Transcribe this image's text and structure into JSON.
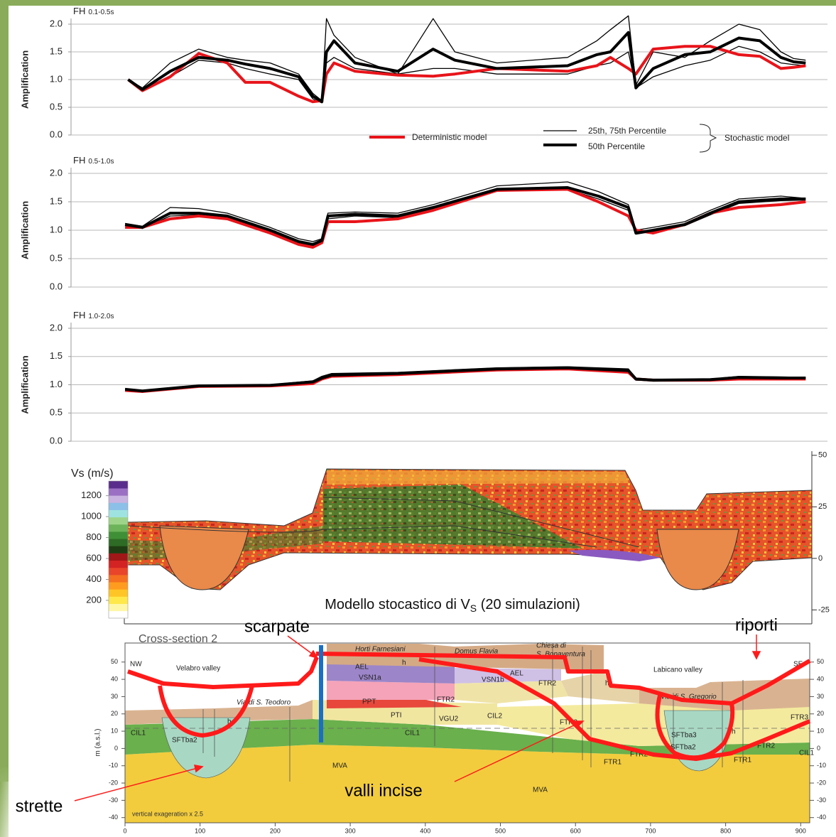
{
  "chart_data": [
    {
      "type": "line",
      "title": "FH",
      "title_subscript": "0.1-0.5s",
      "y_label": "Amplification",
      "xlim": [
        -72,
        935
      ],
      "ylim": [
        0,
        2
      ],
      "yticks": [
        {
          "value": 0,
          "label": "0.0"
        },
        0.5,
        {
          "value": 1,
          "label": "1.0"
        },
        1.5,
        {
          "value": 2,
          "label": "2.0"
        }
      ],
      "grid": true,
      "x": [
        4,
        23,
        60,
        98,
        136,
        160,
        193,
        231,
        250,
        262,
        268,
        278,
        306,
        363,
        410,
        439,
        495,
        589,
        628,
        646,
        670,
        680,
        703,
        745,
        779,
        817,
        845,
        873,
        890,
        906
      ],
      "series": [
        {
          "name": "Deterministic model",
          "color": "#e8141a",
          "values": [
            1.0,
            0.8,
            1.05,
            1.47,
            1.3,
            0.95,
            0.95,
            0.7,
            0.6,
            0.62,
            1.1,
            1.3,
            1.15,
            1.08,
            1.06,
            1.1,
            1.2,
            1.15,
            1.25,
            1.4,
            1.2,
            1.1,
            1.55,
            1.6,
            1.6,
            1.45,
            1.42,
            1.2,
            1.22,
            1.25
          ]
        },
        {
          "name": "50th Percentile",
          "color": "#000000",
          "values": [
            1.0,
            0.82,
            1.15,
            1.4,
            1.35,
            1.28,
            1.2,
            1.05,
            0.7,
            0.6,
            1.5,
            1.7,
            1.3,
            1.15,
            1.55,
            1.35,
            1.2,
            1.25,
            1.45,
            1.5,
            1.85,
            0.85,
            1.2,
            1.45,
            1.5,
            1.75,
            1.7,
            1.4,
            1.32,
            1.3
          ]
        }
      ],
      "percentile_band": {
        "name": "25th, 75th Percentile",
        "color": "#000000",
        "lower": [
          1.0,
          0.8,
          1.05,
          1.35,
          1.3,
          1.2,
          1.1,
          1.0,
          0.65,
          0.58,
          1.3,
          1.4,
          1.2,
          1.1,
          1.2,
          1.2,
          1.1,
          1.1,
          1.25,
          1.3,
          1.5,
          0.85,
          1.05,
          1.25,
          1.35,
          1.6,
          1.5,
          1.3,
          1.27,
          1.25
        ],
        "upper": [
          1.0,
          0.85,
          1.3,
          1.55,
          1.4,
          1.35,
          1.3,
          1.1,
          0.75,
          0.62,
          2.1,
          1.8,
          1.4,
          1.1,
          2.1,
          1.5,
          1.3,
          1.4,
          1.7,
          1.9,
          2.15,
          0.9,
          1.5,
          1.4,
          1.7,
          2.0,
          1.9,
          1.5,
          1.38,
          1.35
        ]
      },
      "legend_group": "Stochastic model"
    },
    {
      "type": "line",
      "title": "FH",
      "title_subscript": "0.5-1.0s",
      "y_label": "Amplification",
      "xlim": [
        -72,
        935
      ],
      "ylim": [
        0,
        2
      ],
      "yticks": [
        {
          "value": 0,
          "label": "0.0"
        },
        0.5,
        {
          "value": 1,
          "label": "1.0"
        },
        1.5,
        {
          "value": 2,
          "label": "2.0"
        }
      ],
      "grid": true,
      "x": [
        0,
        23,
        60,
        98,
        136,
        193,
        231,
        250,
        262,
        270,
        306,
        363,
        410,
        495,
        589,
        630,
        670,
        680,
        703,
        745,
        779,
        817,
        873,
        906
      ],
      "series": [
        {
          "color": "#e8141a",
          "values": [
            1.05,
            1.05,
            1.2,
            1.25,
            1.2,
            0.95,
            0.75,
            0.7,
            0.78,
            1.15,
            1.15,
            1.2,
            1.35,
            1.7,
            1.72,
            1.5,
            1.25,
            1.0,
            0.95,
            1.1,
            1.3,
            1.4,
            1.45,
            1.5
          ]
        },
        {
          "color": "#000000",
          "values": [
            1.1,
            1.05,
            1.3,
            1.3,
            1.25,
            1.0,
            0.8,
            0.75,
            0.82,
            1.25,
            1.28,
            1.25,
            1.4,
            1.72,
            1.75,
            1.6,
            1.4,
            0.95,
            1.0,
            1.1,
            1.3,
            1.5,
            1.55,
            1.55
          ]
        }
      ],
      "percentile_band": {
        "color": "#000000",
        "lower": [
          1.08,
          1.03,
          1.25,
          1.27,
          1.22,
          0.97,
          0.78,
          0.73,
          0.8,
          1.2,
          1.25,
          1.22,
          1.38,
          1.7,
          1.72,
          1.55,
          1.35,
          0.93,
          0.98,
          1.08,
          1.27,
          1.47,
          1.52,
          1.53
        ],
        "upper": [
          1.12,
          1.07,
          1.4,
          1.38,
          1.3,
          1.05,
          0.85,
          0.8,
          0.85,
          1.3,
          1.32,
          1.3,
          1.45,
          1.78,
          1.85,
          1.68,
          1.45,
          1.0,
          1.05,
          1.15,
          1.35,
          1.55,
          1.6,
          1.56
        ]
      }
    },
    {
      "type": "line",
      "title": "FH",
      "title_subscript": "1.0-2.0s",
      "y_label": "Amplification",
      "xlim": [
        -72,
        935
      ],
      "ylim": [
        0,
        2
      ],
      "yticks": [
        {
          "value": 0,
          "label": "0.0"
        },
        0.5,
        {
          "value": 1,
          "label": "1.0"
        },
        1.5,
        {
          "value": 2,
          "label": "2.0"
        }
      ],
      "grid": true,
      "x": [
        0,
        23,
        98,
        193,
        250,
        262,
        275,
        363,
        495,
        589,
        670,
        680,
        703,
        779,
        817,
        873,
        906
      ],
      "series": [
        {
          "color": "#e8141a",
          "values": [
            0.9,
            0.88,
            0.97,
            0.98,
            1.02,
            1.1,
            1.15,
            1.18,
            1.26,
            1.28,
            1.22,
            1.1,
            1.08,
            1.08,
            1.1,
            1.1,
            1.1
          ]
        },
        {
          "color": "#000000",
          "values": [
            0.92,
            0.89,
            0.98,
            0.99,
            1.05,
            1.12,
            1.17,
            1.2,
            1.28,
            1.3,
            1.25,
            1.1,
            1.08,
            1.09,
            1.13,
            1.12,
            1.12
          ]
        }
      ],
      "percentile_band": {
        "color": "#000000",
        "lower": [
          0.91,
          0.88,
          0.97,
          0.98,
          1.03,
          1.1,
          1.15,
          1.18,
          1.26,
          1.28,
          1.22,
          1.08,
          1.07,
          1.08,
          1.1,
          1.1,
          1.1
        ],
        "upper": [
          0.93,
          0.9,
          0.99,
          1.0,
          1.07,
          1.15,
          1.2,
          1.22,
          1.3,
          1.32,
          1.28,
          1.12,
          1.1,
          1.1,
          1.15,
          1.14,
          1.13
        ]
      }
    }
  ],
  "vs_model": {
    "colorbar_label": "Vs (m/s)",
    "colorbar_ticks": [
      200,
      400,
      600,
      800,
      1000,
      1200
    ],
    "colorbar_lim": [
      30,
      1340
    ],
    "colors": [
      "#ffffff",
      "#fff7a8",
      "#ffe84a",
      "#ffc526",
      "#ff9c1f",
      "#f57020",
      "#e8452a",
      "#d42323",
      "#a01818",
      "#1f3d12",
      "#2e6b25",
      "#3f8f36",
      "#6db35a",
      "#9ed48a",
      "#9fe3e0",
      "#8cc0e8",
      "#c9b3e0",
      "#9b6fc4",
      "#5a2d8c"
    ],
    "ylim": [
      -29,
      52
    ],
    "yticks": [
      50,
      25,
      0,
      -25
    ],
    "caption": "Modello stocastico di V",
    "caption_subscript": "S",
    "caption_tail": " (20 simulazioni)"
  },
  "cross_section": {
    "title": "Cross-section 2",
    "y_label": "m (a.s.l.)",
    "xlim": [
      0,
      912
    ],
    "ylim": [
      -43,
      61
    ],
    "xticks": [
      0,
      100,
      200,
      300,
      400,
      500,
      600,
      700,
      800,
      900
    ],
    "yticks": [
      50,
      40,
      30,
      20,
      10,
      0,
      -10,
      -20,
      -30,
      -40
    ],
    "labels": [
      "NW",
      "SE",
      "Velabro valley",
      "Labicano valley",
      "Horti Farnesiani",
      "Domus Flavia",
      "Chiesa di",
      "S. Bonaventura",
      "Via di S. Teodoro",
      "Via di S. Gregorio",
      "AEL",
      "h",
      "VSN1a",
      "VSN1b",
      "AEL",
      "h",
      "FTR2",
      "PPT",
      "PTI",
      "VGU2",
      "CIL2",
      "CIL1",
      "MVA",
      "MVA",
      "FTR2",
      "FTR3",
      "h",
      "h",
      "CIL1",
      "SFTba2",
      "SFTba3",
      "SFTba2",
      "FTR3",
      "FTR2",
      "FTR2",
      "FTR1",
      "FTR1",
      "CIL1"
    ],
    "note": "vertical exageration x 2.5",
    "annotations": [
      "scarpate",
      "riporti",
      "valli incise",
      "strette"
    ]
  }
}
